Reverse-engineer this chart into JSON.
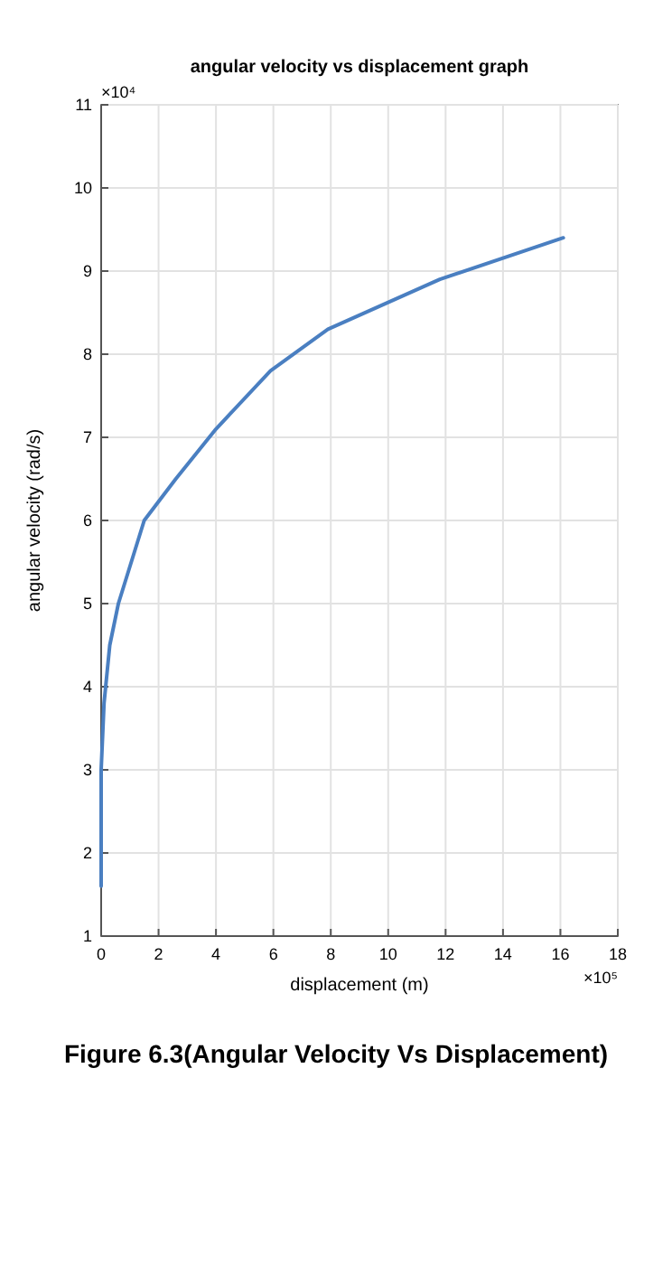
{
  "chart_data": {
    "type": "line",
    "title": "angular velocity vs displacement graph",
    "xlabel": "displacement (m)",
    "ylabel": "angular velocity (rad/s)",
    "annotations": [
      "×10⁴",
      "×10⁵",
      "Figure 6.3(Angular Velocity Vs Displacement)"
    ],
    "x": [
      0,
      0,
      0.1,
      0.3,
      0.6,
      1.5,
      2.6,
      4.0,
      5.9,
      7.9,
      11.8,
      16.1
    ],
    "series": [
      {
        "color": "#4a7fc1",
        "values": [
          1.6,
          3.0,
          3.8,
          4.5,
          5.0,
          6.0,
          6.5,
          7.1,
          7.8,
          8.3,
          8.9,
          9.4
        ]
      }
    ],
    "xlim": [
      0,
      18
    ],
    "xticks": [
      0,
      2,
      4,
      6,
      8,
      10,
      12,
      14,
      16,
      18
    ],
    "ylim": [
      1,
      11
    ],
    "yticks": [
      1,
      2,
      3,
      4,
      5,
      6,
      7,
      8,
      9,
      10,
      11
    ],
    "grid": true,
    "marker": "none",
    "line_style": "solid"
  }
}
